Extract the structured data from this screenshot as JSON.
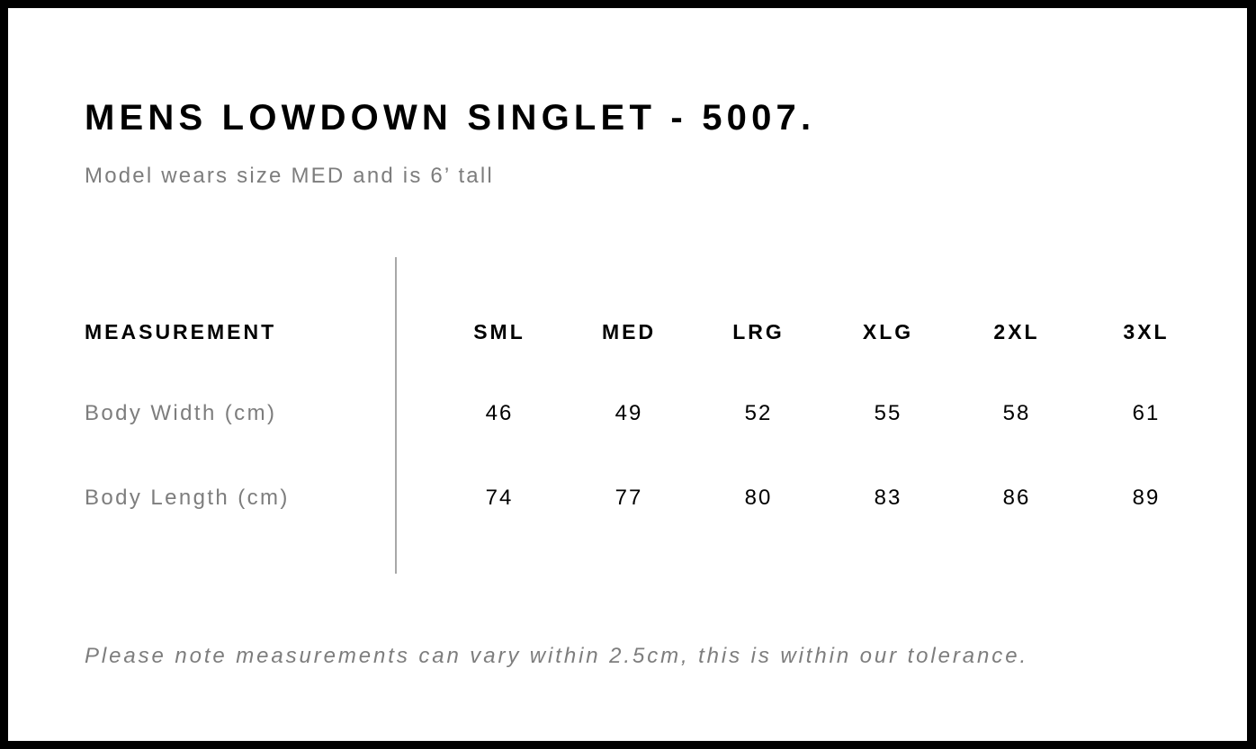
{
  "title": "MENS LOWDOWN SINGLET - 5007.",
  "subtitle": "Model wears size MED and is 6’ tall",
  "table": {
    "header_label": "MEASUREMENT",
    "sizes": [
      "SML",
      "MED",
      "LRG",
      "XLG",
      "2XL",
      "3XL"
    ],
    "rows": [
      {
        "label": "Body Width (cm)",
        "values": [
          "46",
          "49",
          "52",
          "55",
          "58",
          "61"
        ]
      },
      {
        "label": "Body Length (cm)",
        "values": [
          "74",
          "77",
          "80",
          "83",
          "86",
          "89"
        ]
      }
    ]
  },
  "note": "Please note measurements can vary within 2.5cm, this is within our tolerance."
}
